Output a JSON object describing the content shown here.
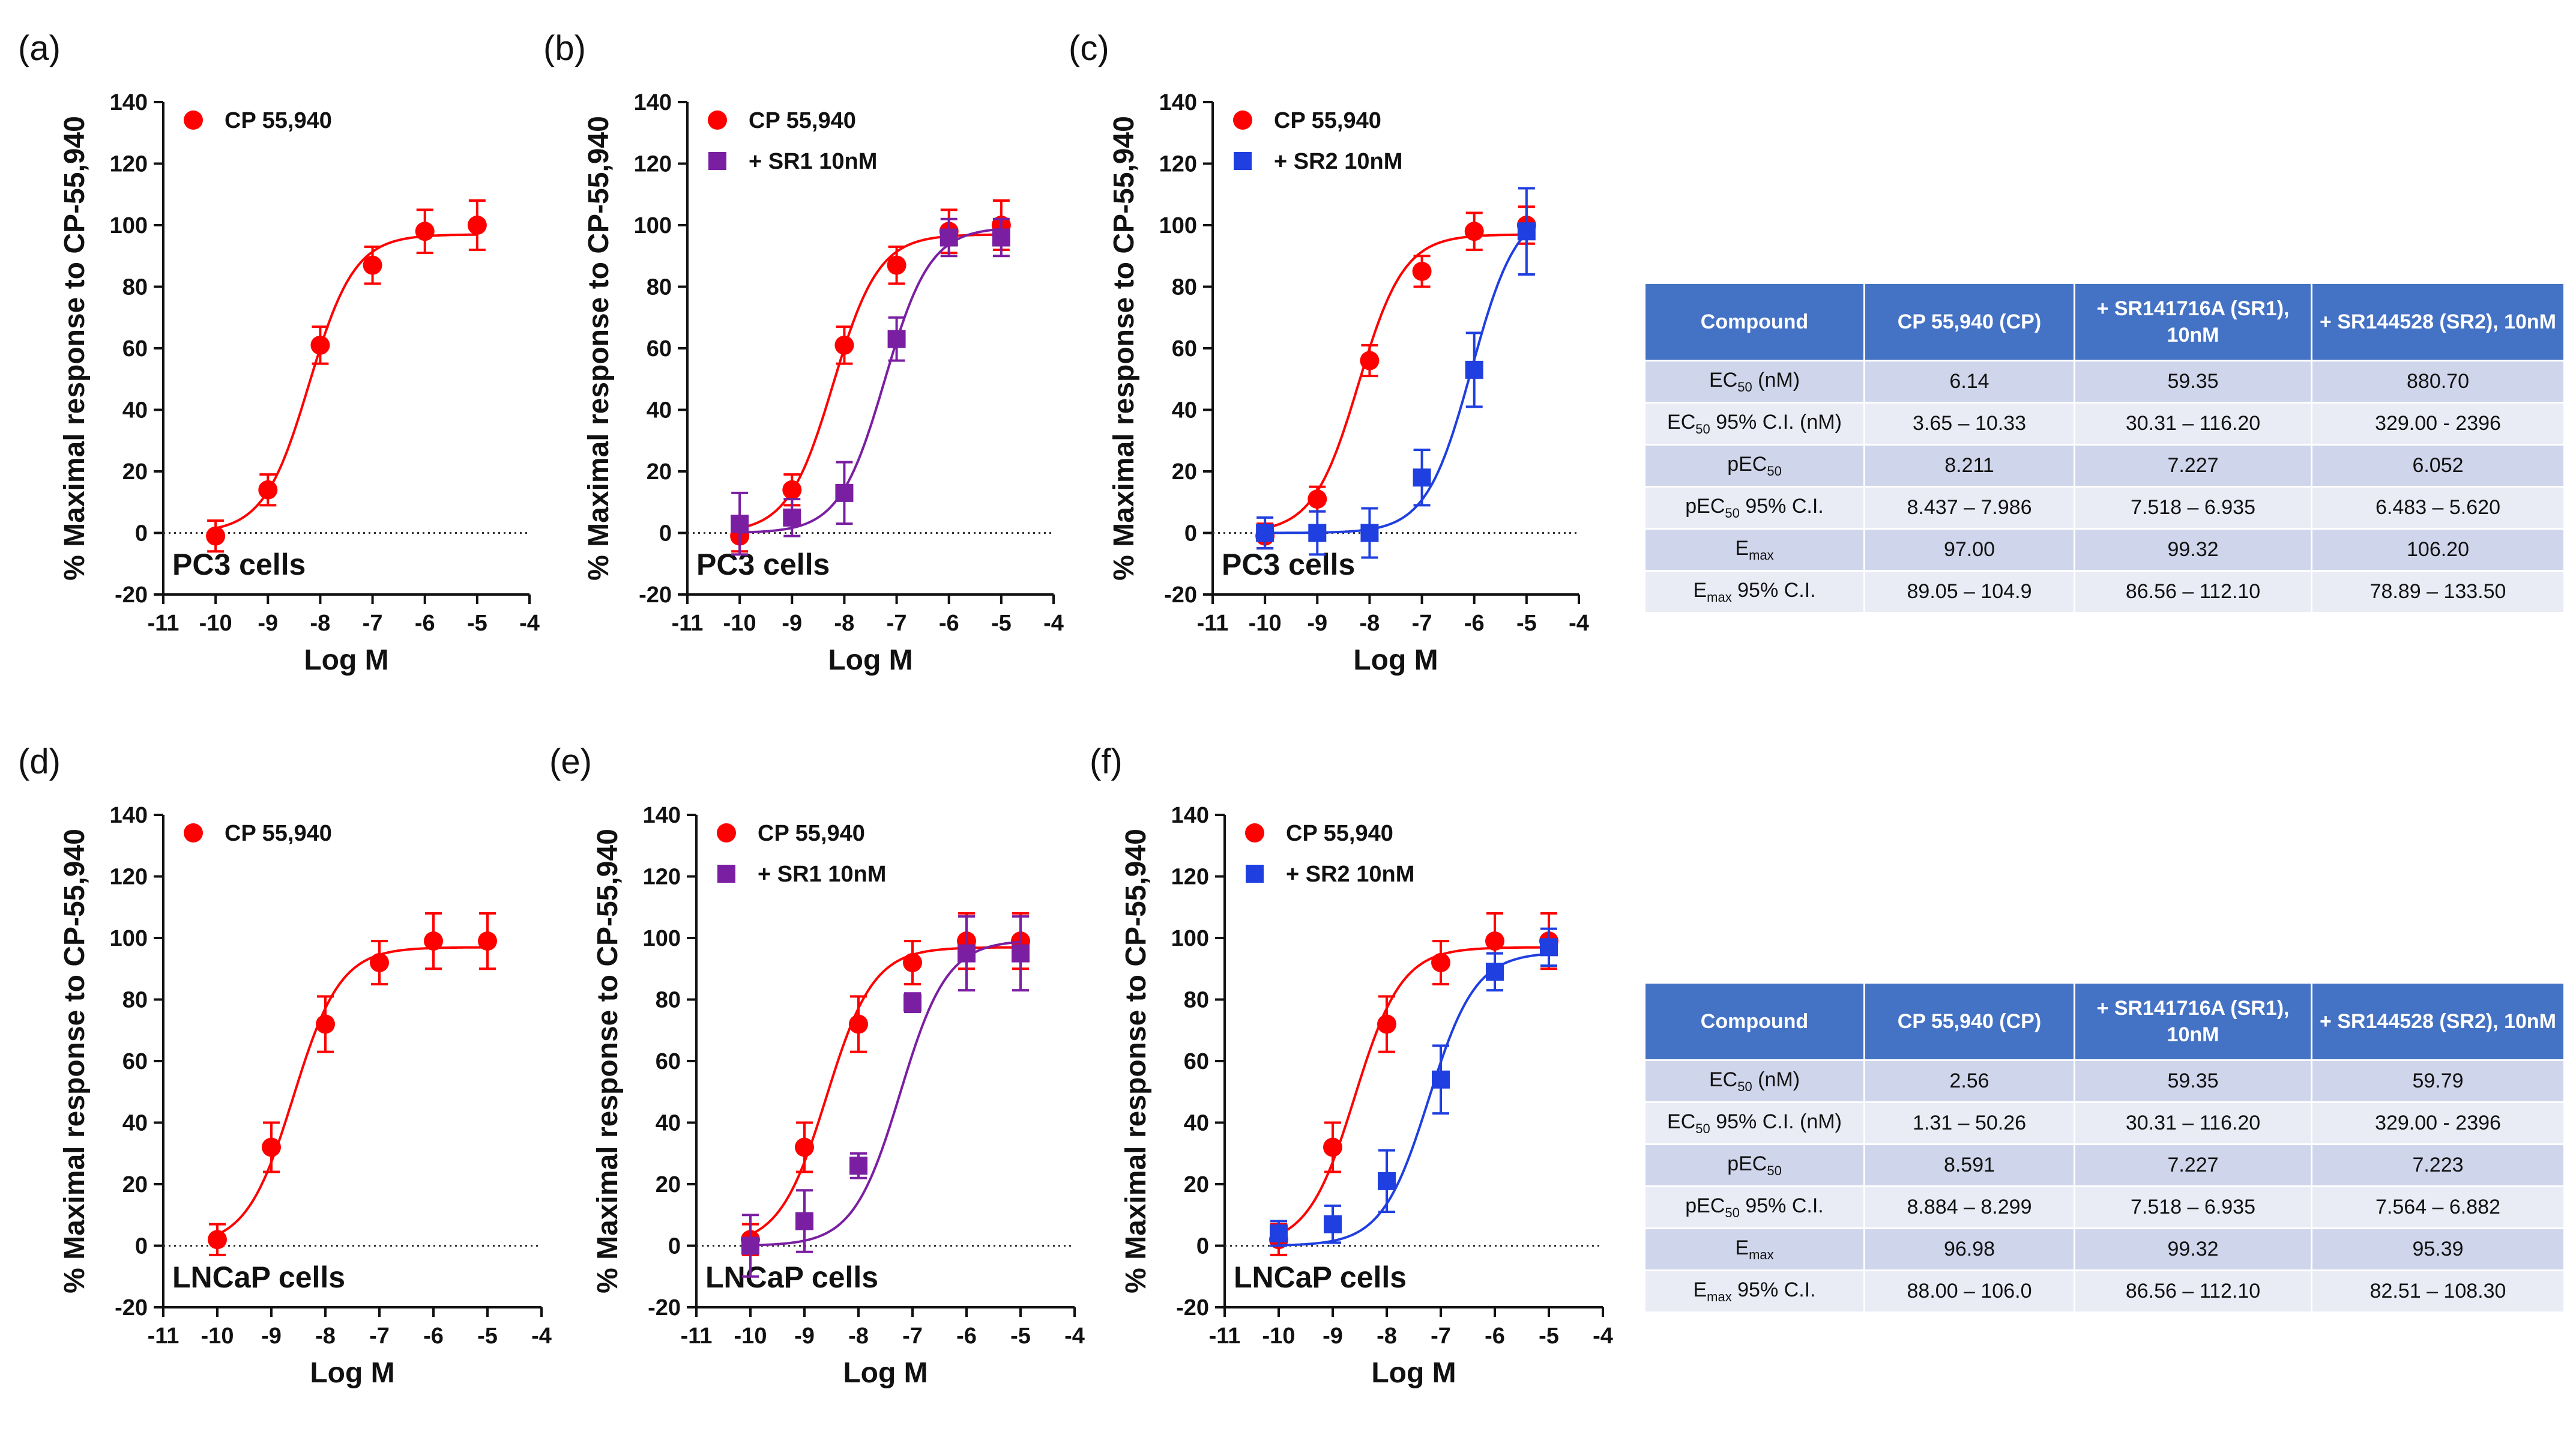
{
  "figure": {
    "rows": [
      {
        "table": {
          "headers": [
            "Compound",
            "CP 55,940 (CP)",
            "+ SR141716A (SR1), 10nM",
            "+ SR144528 (SR2), 10nM"
          ],
          "rows": [
            {
              "param": "EC",
              "sub": "50",
              "suffix": " (nM)",
              "values": [
                "6.14",
                "59.35",
                "880.70"
              ]
            },
            {
              "param": "EC",
              "sub": "50",
              "suffix": " 95% C.I. (nM)",
              "values": [
                "3.65 – 10.33",
                "30.31 – 116.20",
                "329.00 - 2396"
              ]
            },
            {
              "param": "pEC",
              "sub": "50",
              "suffix": "",
              "values": [
                "8.211",
                "7.227",
                "6.052"
              ]
            },
            {
              "param": "pEC",
              "sub": "50",
              "suffix": " 95% C.I.",
              "values": [
                "8.437 – 7.986",
                "7.518 – 6.935",
                "6.483 – 5.620"
              ]
            },
            {
              "param": "E",
              "sub": "max",
              "suffix": "",
              "values": [
                "97.00",
                "99.32",
                "106.20"
              ]
            },
            {
              "param": "E",
              "sub": "max",
              "suffix": " 95% C.I.",
              "values": [
                "89.05 – 104.9",
                "86.56 – 112.10",
                "78.89 – 133.50"
              ]
            }
          ]
        }
      },
      {
        "table": {
          "headers": [
            "Compound",
            "CP 55,940 (CP)",
            "+ SR141716A (SR1), 10nM",
            "+ SR144528 (SR2), 10nM"
          ],
          "rows": [
            {
              "param": "EC",
              "sub": "50",
              "suffix": " (nM)",
              "values": [
                "2.56",
                "59.35",
                "59.79"
              ]
            },
            {
              "param": "EC",
              "sub": "50",
              "suffix": " 95% C.I. (nM)",
              "values": [
                "1.31 – 50.26",
                "30.31 – 116.20",
                "329.00 - 2396"
              ]
            },
            {
              "param": "pEC",
              "sub": "50",
              "suffix": "",
              "values": [
                "8.591",
                "7.227",
                "7.223"
              ]
            },
            {
              "param": "pEC",
              "sub": "50",
              "suffix": " 95% C.I.",
              "values": [
                "8.884 – 8.299",
                "7.518 – 6.935",
                "7.564 – 6.882"
              ]
            },
            {
              "param": "E",
              "sub": "max",
              "suffix": "",
              "values": [
                "96.98",
                "99.32",
                "95.39"
              ]
            },
            {
              "param": "E",
              "sub": "max",
              "suffix": " 95% C.I.",
              "values": [
                "88.00 – 106.0",
                "86.56 – 112.10",
                "82.51 – 108.30"
              ]
            }
          ]
        }
      }
    ]
  },
  "chart_data": [
    {
      "panel": "(a)",
      "type": "scatter",
      "fit": "sigmoidal dose-response",
      "cell_line": "PC3 cells",
      "xlabel": "Log M",
      "ylabel": "% Maximal response to CP-55,940",
      "xlim": [
        -11,
        -4
      ],
      "ylim": [
        -20,
        140
      ],
      "xticks": [
        -11,
        -10,
        -9,
        -8,
        -7,
        -6,
        -5,
        -4
      ],
      "yticks": [
        -20,
        0,
        20,
        40,
        60,
        80,
        100,
        120,
        140
      ],
      "series": [
        {
          "name": "CP 55,940",
          "marker": "circle",
          "color": "#ff0000",
          "x": [
            -10,
            -9,
            -8,
            -7,
            -6,
            -5
          ],
          "y": [
            -1,
            14,
            61,
            87,
            98,
            100
          ],
          "err": [
            5,
            5,
            6,
            6,
            7,
            8
          ],
          "fit": {
            "bottom": 0,
            "top": 97.0,
            "logEC50": -8.211
          }
        }
      ]
    },
    {
      "panel": "(b)",
      "type": "scatter",
      "fit": "sigmoidal dose-response",
      "cell_line": "PC3 cells",
      "xlabel": "Log M",
      "ylabel": "% Maximal response to CP-55,940",
      "xlim": [
        -11,
        -4
      ],
      "ylim": [
        -20,
        140
      ],
      "xticks": [
        -11,
        -10,
        -9,
        -8,
        -7,
        -6,
        -5,
        -4
      ],
      "yticks": [
        -20,
        0,
        20,
        40,
        60,
        80,
        100,
        120,
        140
      ],
      "series": [
        {
          "name": "CP 55,940",
          "marker": "circle",
          "color": "#ff0000",
          "x": [
            -10,
            -9,
            -8,
            -7,
            -6,
            -5
          ],
          "y": [
            -1,
            14,
            61,
            87,
            98,
            100
          ],
          "err": [
            5,
            5,
            6,
            6,
            7,
            8
          ],
          "fit": {
            "bottom": 0,
            "top": 97.0,
            "logEC50": -8.211
          }
        },
        {
          "name": "+ SR1 10nM",
          "marker": "square",
          "color": "#7a1fa2",
          "x": [
            -10,
            -9,
            -8,
            -7,
            -6,
            -5
          ],
          "y": [
            3,
            5,
            13,
            63,
            96,
            96
          ],
          "err": [
            10,
            6,
            10,
            7,
            6,
            6
          ],
          "fit": {
            "bottom": 0,
            "top": 99.32,
            "logEC50": -7.227
          }
        }
      ]
    },
    {
      "panel": "(c)",
      "type": "scatter",
      "fit": "sigmoidal dose-response",
      "cell_line": "PC3 cells",
      "xlabel": "Log M",
      "ylabel": "% Maximal response to CP-55,940",
      "xlim": [
        -11,
        -4
      ],
      "ylim": [
        -20,
        140
      ],
      "xticks": [
        -11,
        -10,
        -9,
        -8,
        -7,
        -6,
        -5,
        -4
      ],
      "yticks": [
        -20,
        0,
        20,
        40,
        60,
        80,
        100,
        120,
        140
      ],
      "series": [
        {
          "name": "CP 55,940",
          "marker": "circle",
          "color": "#ff0000",
          "x": [
            -10,
            -9,
            -8,
            -7,
            -6,
            -5
          ],
          "y": [
            -1,
            11,
            56,
            85,
            98,
            100
          ],
          "err": [
            4,
            4,
            5,
            5,
            6,
            6
          ],
          "fit": {
            "bottom": 0,
            "top": 97.0,
            "logEC50": -8.211
          }
        },
        {
          "name": "+ SR2 10nM",
          "marker": "square",
          "color": "#1f3fe0",
          "x": [
            -10,
            -9,
            -8,
            -7,
            -6,
            -5
          ],
          "y": [
            0,
            0,
            0,
            18,
            53,
            98
          ],
          "err": [
            5,
            7,
            8,
            9,
            12,
            14
          ],
          "fit": {
            "bottom": 0,
            "top": 106.2,
            "logEC50": -6.052
          }
        }
      ]
    },
    {
      "panel": "(d)",
      "type": "scatter",
      "fit": "sigmoidal dose-response",
      "cell_line": "LNCaP cells",
      "xlabel": "Log M",
      "ylabel": "% Maximal response to CP-55,940",
      "xlim": [
        -11,
        -4
      ],
      "ylim": [
        -20,
        140
      ],
      "xticks": [
        -11,
        -10,
        -9,
        -8,
        -7,
        -6,
        -5,
        -4
      ],
      "yticks": [
        -20,
        0,
        20,
        40,
        60,
        80,
        100,
        120,
        140
      ],
      "series": [
        {
          "name": "CP 55,940",
          "marker": "circle",
          "color": "#ff0000",
          "x": [
            -10,
            -9,
            -8,
            -7,
            -6,
            -5
          ],
          "y": [
            2,
            32,
            72,
            92,
            99,
            99
          ],
          "err": [
            5,
            8,
            9,
            7,
            9,
            9
          ],
          "fit": {
            "bottom": 0,
            "top": 96.98,
            "logEC50": -8.591
          }
        }
      ]
    },
    {
      "panel": "(e)",
      "type": "scatter",
      "fit": "sigmoidal dose-response",
      "cell_line": "LNCaP cells",
      "xlabel": "Log M",
      "ylabel": "% Maximal response to CP-55,940",
      "xlim": [
        -11,
        -4
      ],
      "ylim": [
        -20,
        140
      ],
      "xticks": [
        -11,
        -10,
        -9,
        -8,
        -7,
        -6,
        -5,
        -4
      ],
      "yticks": [
        -20,
        0,
        20,
        40,
        60,
        80,
        100,
        120,
        140
      ],
      "series": [
        {
          "name": "CP 55,940",
          "marker": "circle",
          "color": "#ff0000",
          "x": [
            -10,
            -9,
            -8,
            -7,
            -6,
            -5
          ],
          "y": [
            2,
            32,
            72,
            92,
            99,
            99
          ],
          "err": [
            5,
            8,
            9,
            7,
            9,
            9
          ],
          "fit": {
            "bottom": 0,
            "top": 96.98,
            "logEC50": -8.591
          }
        },
        {
          "name": "+ SR1 10nM",
          "marker": "square",
          "color": "#7a1fa2",
          "x": [
            -10,
            -9,
            -8,
            -7,
            -6,
            -5
          ],
          "y": [
            0,
            8,
            26,
            79,
            95,
            95
          ],
          "err": [
            10,
            10,
            4,
            3,
            12,
            12
          ],
          "fit": {
            "bottom": 0,
            "top": 99.32,
            "logEC50": -7.227
          }
        }
      ]
    },
    {
      "panel": "(f)",
      "type": "scatter",
      "fit": "sigmoidal dose-response",
      "cell_line": "LNCaP cells",
      "xlabel": "Log M",
      "ylabel": "% Maximal response to CP-55,940",
      "xlim": [
        -11,
        -4
      ],
      "ylim": [
        -20,
        140
      ],
      "xticks": [
        -11,
        -10,
        -9,
        -8,
        -7,
        -6,
        -5,
        -4
      ],
      "yticks": [
        -20,
        0,
        20,
        40,
        60,
        80,
        100,
        120,
        140
      ],
      "series": [
        {
          "name": "CP 55,940",
          "marker": "circle",
          "color": "#ff0000",
          "x": [
            -10,
            -9,
            -8,
            -7,
            -6,
            -5
          ],
          "y": [
            2,
            32,
            72,
            92,
            99,
            99
          ],
          "err": [
            5,
            8,
            9,
            7,
            9,
            9
          ],
          "fit": {
            "bottom": 0,
            "top": 96.98,
            "logEC50": -8.591
          }
        },
        {
          "name": "+ SR2 10nM",
          "marker": "square",
          "color": "#1f3fe0",
          "x": [
            -10,
            -9,
            -8,
            -7,
            -6,
            -5
          ],
          "y": [
            4,
            7,
            21,
            54,
            89,
            97
          ],
          "err": [
            4,
            6,
            10,
            11,
            6,
            6
          ],
          "fit": {
            "bottom": 0,
            "top": 95.39,
            "logEC50": -7.223
          }
        }
      ]
    }
  ]
}
